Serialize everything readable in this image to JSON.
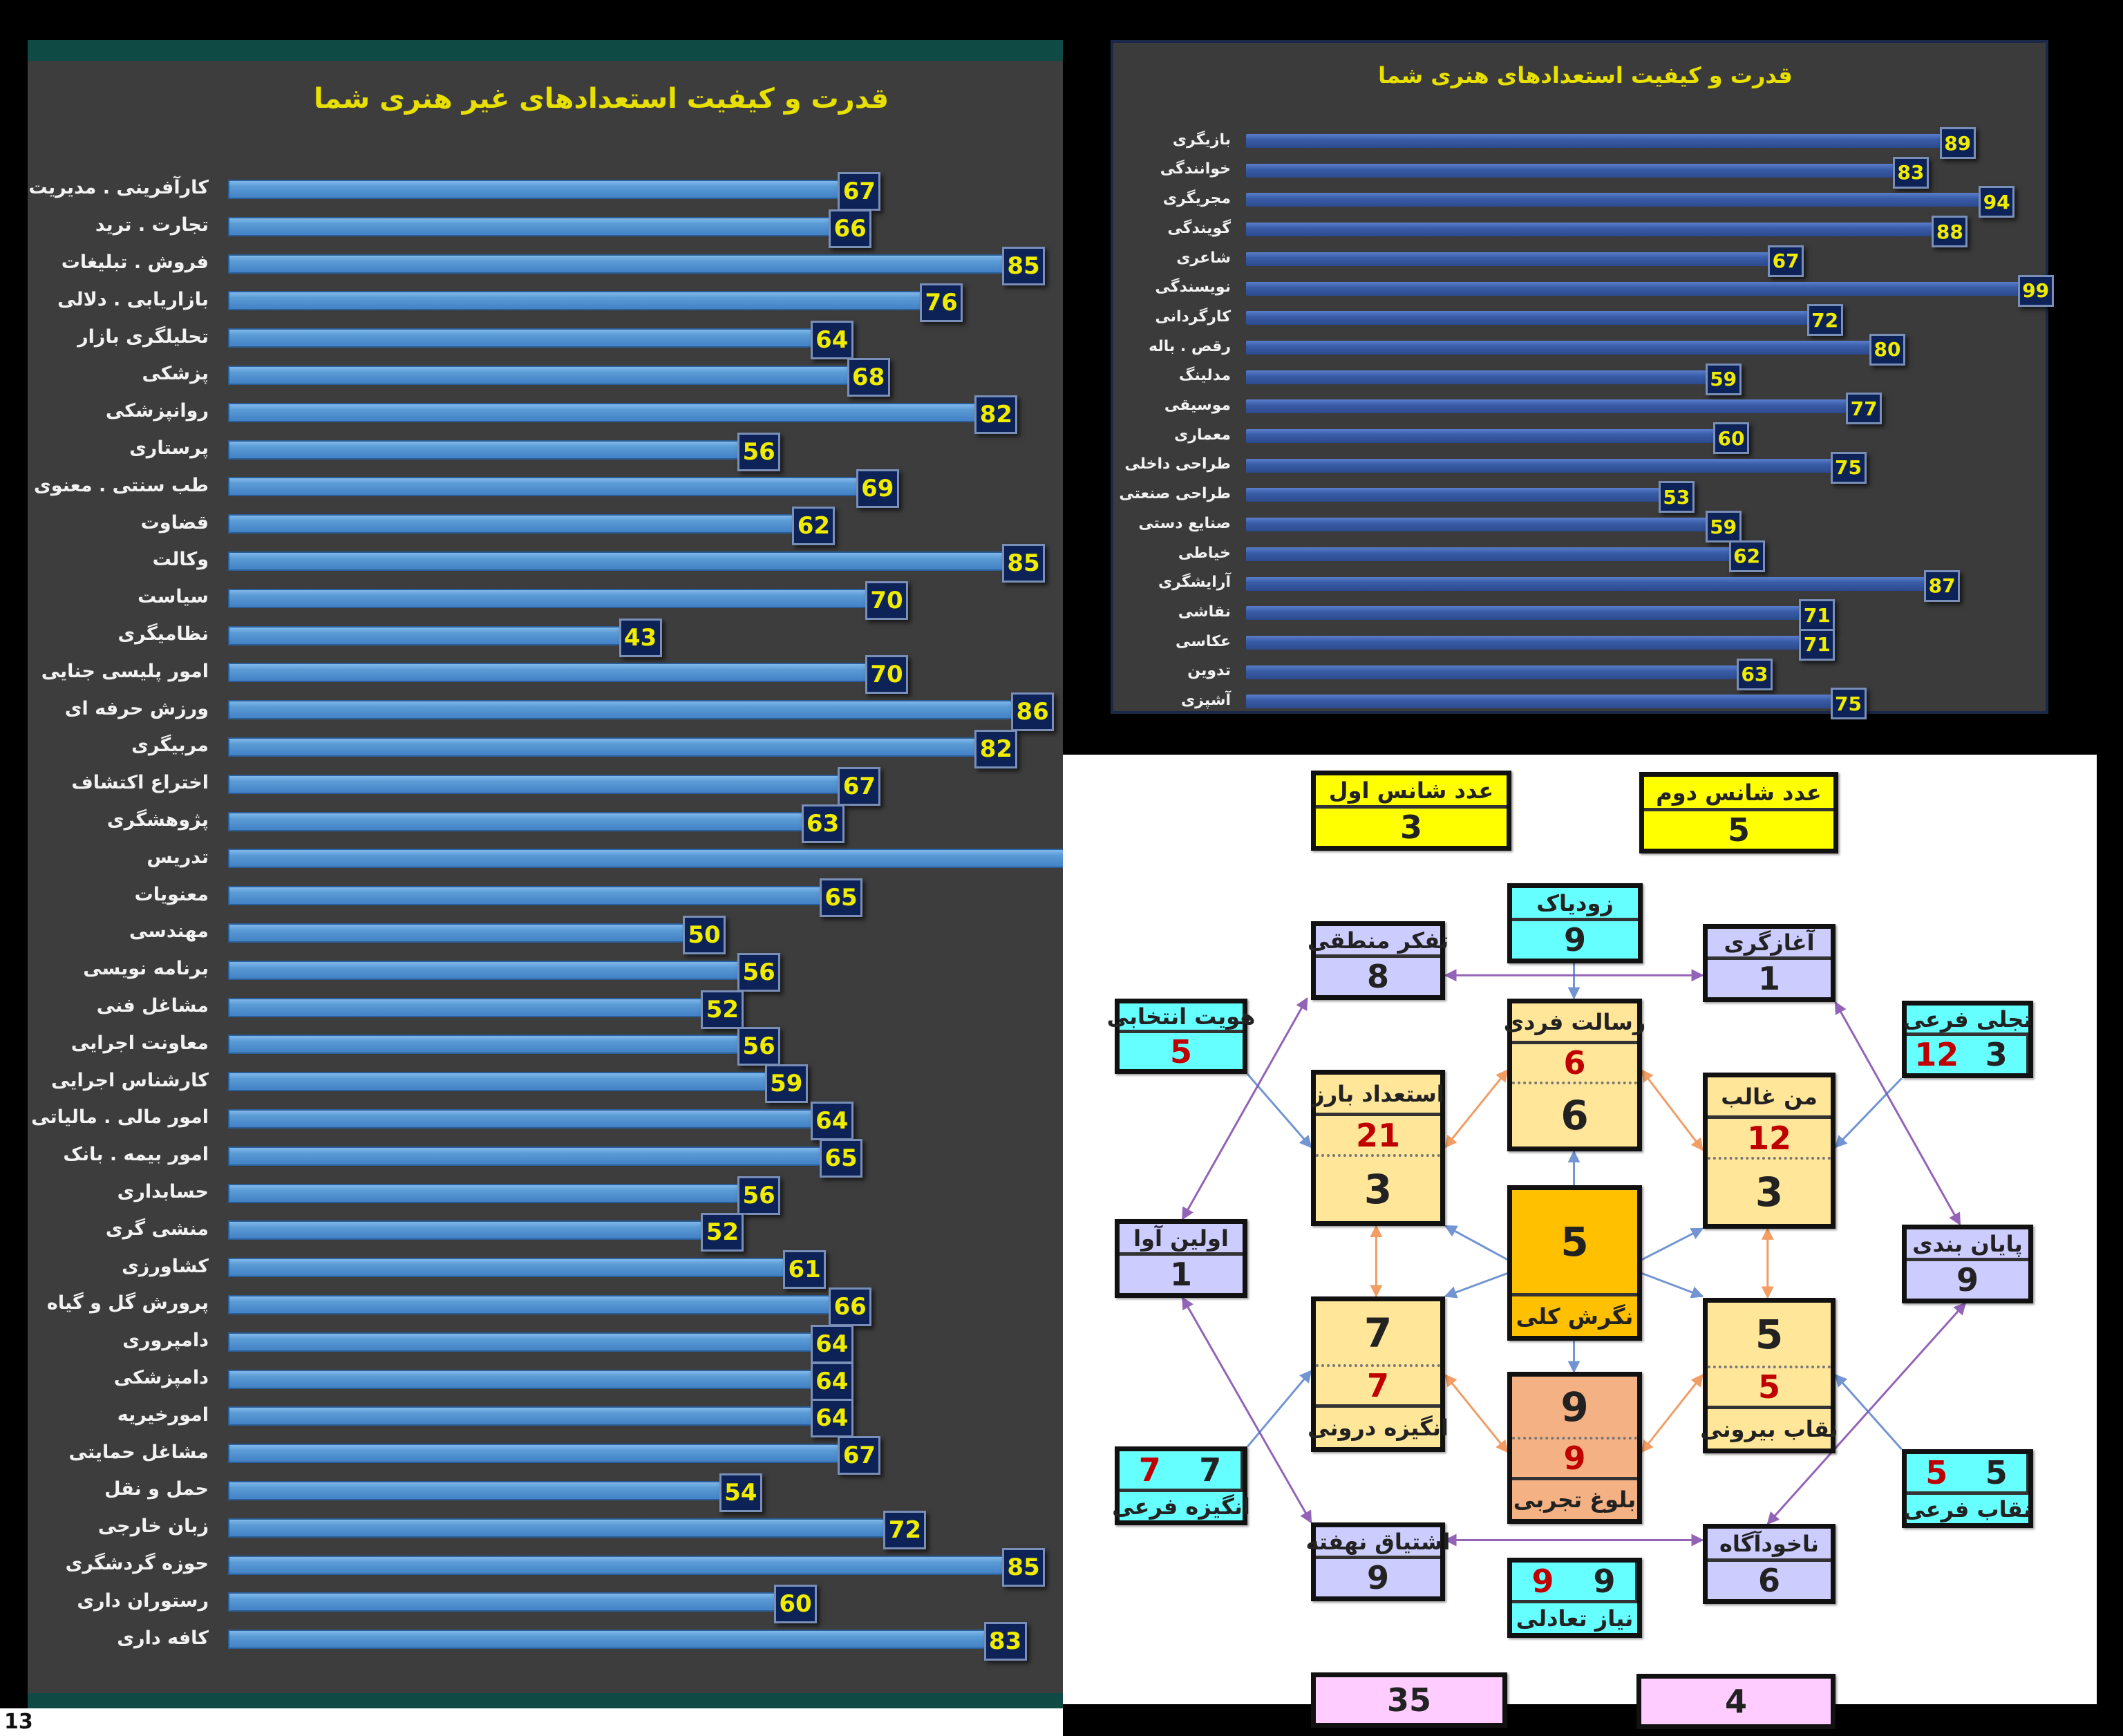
{
  "page_number": "13",
  "chart_data": [
    {
      "type": "bar",
      "orientation": "horizontal",
      "title": "قدرت و کیفیت استعدادهای غیر هنری شما",
      "categories": [
        "کارآفرینی . مدیریت",
        "تجارت . ترید",
        "فروش . تبلیغات",
        "بازاریابی . دلالی",
        "تحلیلگری بازار",
        "پزشکی",
        "روانپزشکی",
        "پرستاری",
        "طب سنتی . معنوی",
        "قضاوت",
        "وکالت",
        "سیاست",
        "نظامیگری",
        "امور پلیسی جنایی",
        "ورزش حرفه ای",
        "مربیگری",
        "اختراع اکتشاف",
        "پژوهشگری",
        "تدریس",
        "معنویات",
        "مهندسی",
        "برنامه نویسی",
        "مشاغل فنی",
        "معاونت اجرایی",
        "کارشناس اجرایی",
        "امور مالی . مالیاتی",
        "امور بیمه . بانک",
        "حسابداری",
        "منشی گری",
        "کشاورزی",
        "پرورش گل و گیاه",
        "دامپروری",
        "دامپزشکی",
        "امورخیریه",
        "مشاغل حمایتی",
        "حمل و نقل",
        "زبان خارجی",
        "حوزه گردشگری",
        "رستوران داری",
        "کافه داری"
      ],
      "values": [
        67,
        66,
        85,
        76,
        64,
        68,
        82,
        56,
        69,
        62,
        85,
        70,
        43,
        70,
        86,
        82,
        67,
        63,
        null,
        65,
        50,
        56,
        52,
        56,
        59,
        64,
        65,
        56,
        52,
        61,
        66,
        64,
        64,
        64,
        67,
        54,
        72,
        85,
        60,
        83
      ],
      "xlim": [
        0,
        100
      ],
      "grid": false,
      "bar_color": "#5b9bd5",
      "label_box_color": "#0d2257",
      "label_text_color": "#f0ec00",
      "title_color": "#e8e000"
    },
    {
      "type": "bar",
      "orientation": "horizontal",
      "title": "قدرت و کیفیت استعدادهای هنری شما",
      "categories": [
        "بازیگری",
        "خوانندگی",
        "مجریگری",
        "گویندگی",
        "شاعری",
        "نویسندگی",
        "کارگردانی",
        "رقص . باله",
        "مدلینگ",
        "موسیقی",
        "معماری",
        "طراحی داخلی",
        "طراحی صنعتی",
        "صنایع دستی",
        "خیاطی",
        "آرایشگری",
        "نقاشی",
        "عکاسی",
        "تدوین",
        "آشپزی"
      ],
      "values": [
        89,
        83,
        94,
        88,
        67,
        99,
        72,
        80,
        59,
        77,
        60,
        75,
        53,
        59,
        62,
        87,
        71,
        71,
        63,
        75
      ],
      "xlim": [
        0,
        100
      ],
      "grid": false,
      "bar_color": "#3a5da8",
      "label_box_color": "#0d2257",
      "label_text_color": "#f0ec00",
      "title_color": "#e8e000"
    }
  ],
  "diagram": {
    "colors": {
      "yellow": "#ffff00",
      "cyan": "#66ffff",
      "lavender": "#ccccff",
      "cream": "#ffe699",
      "orange": "#ffc000",
      "salmon": "#f4b183",
      "pink": "#ffccff",
      "red_number": "#c00000"
    },
    "boxes": {
      "chance1": {
        "title": "عدد شانس اول",
        "value": "3"
      },
      "chance2": {
        "title": "عدد شانس دوم",
        "value": "5"
      },
      "zodiac": {
        "title": "زودیاک",
        "value": "9"
      },
      "logical": {
        "title": "تفکر منطقی",
        "value": "8"
      },
      "initiative": {
        "title": "آغازگری",
        "value": "1"
      },
      "hoviyat": {
        "title": "هویت انتخابی",
        "value": "5"
      },
      "tajalli": {
        "title": "تجلی فرعی",
        "value_red": "12",
        "value": "3"
      },
      "resalat": {
        "title": "رسالت فردی",
        "value_red": "6",
        "value": "6"
      },
      "estedad": {
        "title": "استعداد بارز",
        "value_red": "21",
        "value": "3"
      },
      "ghaleb": {
        "title": "من غالب",
        "value_red": "12",
        "value": "3"
      },
      "negaresh": {
        "title": "نگرش کلی",
        "value": "5"
      },
      "avvalin": {
        "title": "اولین آوا",
        "value": "1"
      },
      "payan": {
        "title": "پایان بندی",
        "value": "9"
      },
      "angizeh": {
        "title": "انگیزه درونی",
        "value_red": "7",
        "value": "7"
      },
      "neghab": {
        "title": "نقاب بیرونی",
        "value_red": "5",
        "value": "5"
      },
      "bologh": {
        "title": "بلوغ تجربی",
        "value_red": "9",
        "value": "9"
      },
      "angizeh_farei": {
        "title": "انگیزه فرعی",
        "value_red": "7",
        "value": "7"
      },
      "neghab_farei": {
        "title": "نقاب فرعی",
        "value_red": "5",
        "value": "5"
      },
      "eshtiagh": {
        "title": "اشتیاق نهفته",
        "value": "9"
      },
      "nakhodagah": {
        "title": "ناخودآگاه",
        "value": "6"
      },
      "niaz": {
        "title": "نیاز تعادلی",
        "value_red": "9",
        "value": "9"
      },
      "pink1": {
        "value": "35"
      },
      "pink2": {
        "value": "4"
      }
    }
  }
}
